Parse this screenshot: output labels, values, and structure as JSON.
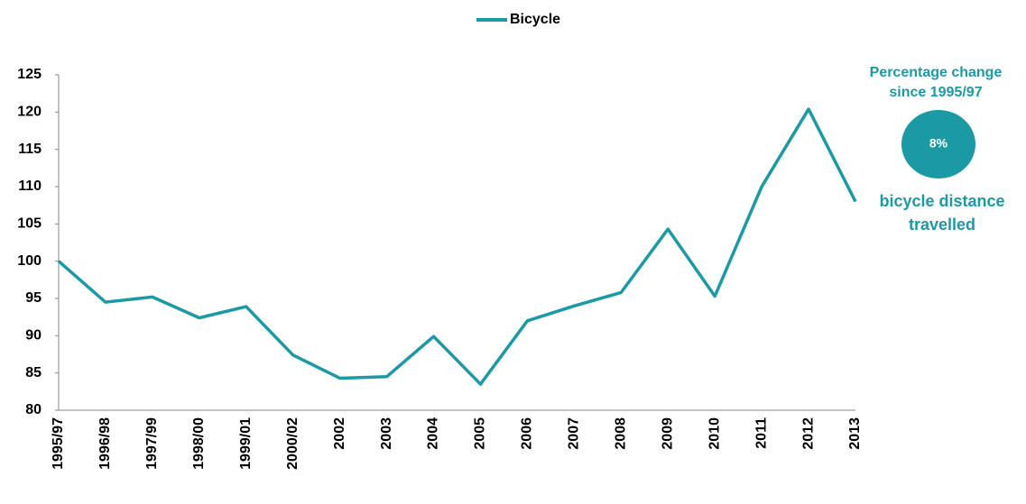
{
  "chart_data": {
    "type": "line",
    "categories": [
      "1995/97",
      "1996/98",
      "1997/99",
      "1998/00",
      "1999/01",
      "2000/02",
      "2002",
      "2003",
      "2004",
      "2005",
      "2006",
      "2007",
      "2008",
      "2009",
      "2010",
      "2011",
      "2012",
      "2013"
    ],
    "series": [
      {
        "name": "Bicycle",
        "color": "#1b9aa6",
        "values": [
          100,
          94.5,
          95.2,
          92.4,
          93.9,
          87.4,
          84.3,
          84.5,
          89.9,
          83.5,
          92.0,
          94.0,
          95.8,
          104.3,
          95.3,
          110,
          120.4,
          108
        ]
      }
    ],
    "ylim": [
      80,
      125
    ],
    "yticks": [
      80,
      85,
      90,
      95,
      100,
      105,
      110,
      115,
      120,
      125
    ],
    "grid": false,
    "legend": "top",
    "annotation": {
      "title": [
        "Percentage change",
        "since 1995/97"
      ],
      "value": "8%",
      "caption": [
        "bicycle distance",
        "travelled"
      ]
    }
  }
}
